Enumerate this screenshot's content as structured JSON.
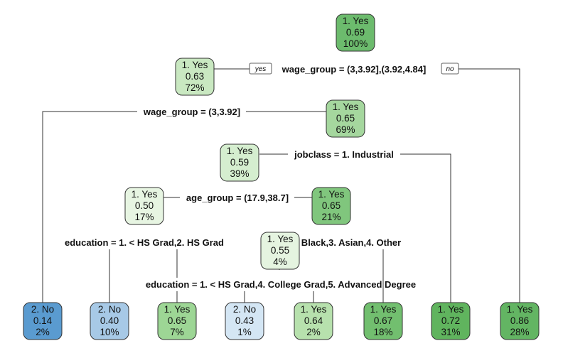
{
  "tree": {
    "root_labels": {
      "yes": "yes",
      "no": "no"
    },
    "splits": [
      {
        "id": "s1",
        "text": "wage_group = (3,3.92],(3.92,4.84]"
      },
      {
        "id": "s2",
        "text": "wage_group = (3,3.92]"
      },
      {
        "id": "s3",
        "text": "jobclass = 1. Industrial"
      },
      {
        "id": "s4",
        "text": "age_group = (17.9,38.7]"
      },
      {
        "id": "s5",
        "text": "education = 1. < HS Grad,2. HS Grad"
      },
      {
        "id": "s6",
        "text": "race = 2. Black,3. Asian,4. Other"
      },
      {
        "id": "s7",
        "text": "education = 1. < HS Grad,4. College Grad,5. Advanced Degree"
      }
    ],
    "nodes": [
      {
        "id": "n1",
        "class": "1. Yes",
        "prob": "0.69",
        "pct": "100%",
        "color": "#6cbb6d"
      },
      {
        "id": "n2",
        "class": "1. Yes",
        "prob": "0.63",
        "pct": "72%",
        "color": "#c9e8c1"
      },
      {
        "id": "n3",
        "class": "1. Yes",
        "prob": "0.65",
        "pct": "69%",
        "color": "#a5d79e"
      },
      {
        "id": "n4",
        "class": "1. Yes",
        "prob": "0.59",
        "pct": "39%",
        "color": "#d5eecf"
      },
      {
        "id": "n5",
        "class": "1. Yes",
        "prob": "0.50",
        "pct": "17%",
        "color": "#e7f5e2"
      },
      {
        "id": "n6",
        "class": "1. Yes",
        "prob": "0.65",
        "pct": "21%",
        "color": "#80c67d"
      },
      {
        "id": "n7",
        "class": "1. Yes",
        "prob": "0.55",
        "pct": "4%",
        "color": "#e5f4e0"
      },
      {
        "id": "l1",
        "class": "2. No",
        "prob": "0.14",
        "pct": "2%",
        "color": "#5a9bd0"
      },
      {
        "id": "l2",
        "class": "2. No",
        "prob": "0.40",
        "pct": "10%",
        "color": "#a7c9e6"
      },
      {
        "id": "l3",
        "class": "1. Yes",
        "prob": "0.65",
        "pct": "7%",
        "color": "#9dd695"
      },
      {
        "id": "l4",
        "class": "2. No",
        "prob": "0.43",
        "pct": "1%",
        "color": "#d4e6f4"
      },
      {
        "id": "l5",
        "class": "1. Yes",
        "prob": "0.64",
        "pct": "2%",
        "color": "#b7e1ad"
      },
      {
        "id": "l6",
        "class": "1. Yes",
        "prob": "0.67",
        "pct": "18%",
        "color": "#72bf6f"
      },
      {
        "id": "l7",
        "class": "1. Yes",
        "prob": "0.72",
        "pct": "31%",
        "color": "#60b45e"
      },
      {
        "id": "l8",
        "class": "1. Yes",
        "prob": "0.86",
        "pct": "28%",
        "color": "#63b563"
      }
    ]
  }
}
